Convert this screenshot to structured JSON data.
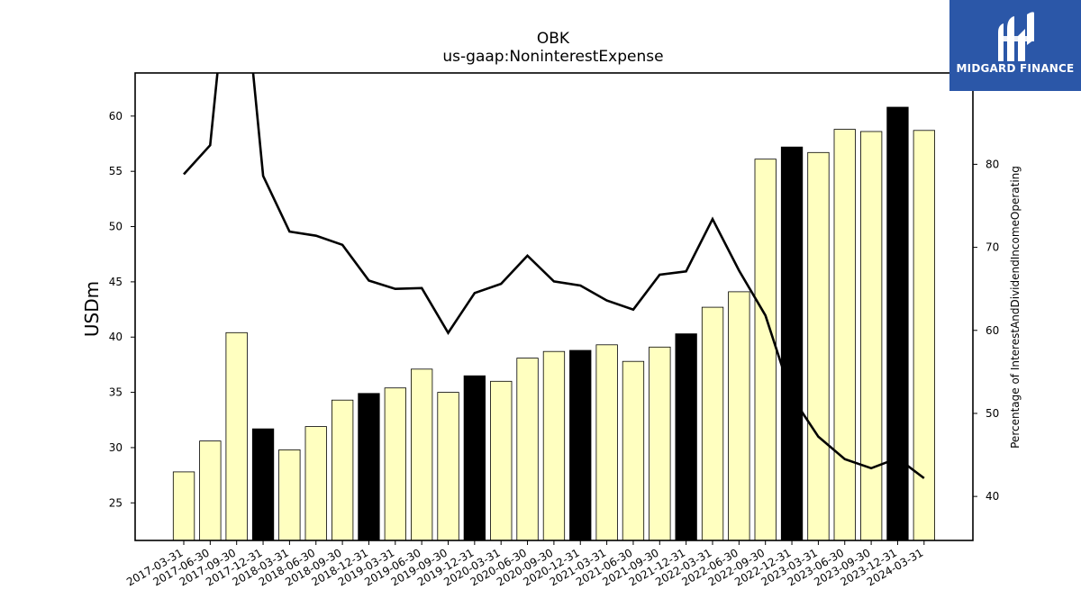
{
  "chart_data": {
    "type": "bar+line",
    "title": "OBK",
    "subtitle": "us-gaap:NoninterestExpense",
    "ylabel": "USDm",
    "y2label": "Percentage of InterestAndDividendIncomeOperating",
    "ylim": [
      21.6,
      63.9
    ],
    "y2lim": [
      34.7,
      91.0
    ],
    "yticks": [
      25,
      30,
      35,
      40,
      45,
      50,
      55,
      60
    ],
    "y2ticks": [
      40,
      50,
      60,
      70,
      80
    ],
    "categories": [
      "2017-03-31",
      "2017-06-30",
      "2017-09-30",
      "2017-12-31",
      "2018-03-31",
      "2018-06-30",
      "2018-09-30",
      "2018-12-31",
      "2019-03-31",
      "2019-06-30",
      "2019-09-30",
      "2019-12-31",
      "2020-03-31",
      "2020-06-30",
      "2020-09-30",
      "2020-12-31",
      "2021-03-31",
      "2021-06-30",
      "2021-09-30",
      "2021-12-31",
      "2022-03-31",
      "2022-06-30",
      "2022-09-30",
      "2022-12-31",
      "2023-03-31",
      "2023-06-30",
      "2023-09-30",
      "2023-12-31",
      "2024-03-31"
    ],
    "bars": [
      27.8,
      30.6,
      40.4,
      31.7,
      29.8,
      31.9,
      34.3,
      34.9,
      35.4,
      37.1,
      35.0,
      36.5,
      36.0,
      38.1,
      38.7,
      38.8,
      39.3,
      37.8,
      39.1,
      40.3,
      42.7,
      44.1,
      56.1,
      57.2,
      56.7,
      58.8,
      58.6,
      60.8,
      58.7
    ],
    "bar_highlight": [
      false,
      false,
      false,
      true,
      false,
      false,
      false,
      true,
      false,
      false,
      false,
      true,
      false,
      false,
      false,
      true,
      false,
      false,
      false,
      true,
      false,
      false,
      false,
      true,
      false,
      false,
      false,
      true,
      false
    ],
    "line": [
      78.8,
      82.3,
      95.0,
      95.0,
      78.6,
      71.9,
      71.4,
      70.3,
      66.0,
      65.0,
      65.1,
      59.7,
      64.5,
      65.6,
      69.0,
      65.9,
      65.4,
      63.6,
      62.5,
      66.7,
      67.1,
      73.4,
      67.2,
      61.8,
      52.0,
      47.2,
      44.5,
      43.4,
      44.6,
      42.2
    ],
    "line_x": [
      0,
      1,
      1.4,
      2.5,
      3,
      4,
      5,
      6,
      7,
      8,
      9,
      10,
      11,
      12,
      13,
      14,
      15,
      16,
      17,
      18,
      19,
      20,
      21,
      22,
      23,
      24,
      25,
      26,
      27,
      28
    ],
    "colors": {
      "bar": "#ffffc0",
      "bar_highlight": "#000000",
      "bar_edge": "#000000",
      "line": "#000000"
    }
  },
  "brand": {
    "name": "MIDGARD FINANCE",
    "background": "#2b57a8"
  }
}
